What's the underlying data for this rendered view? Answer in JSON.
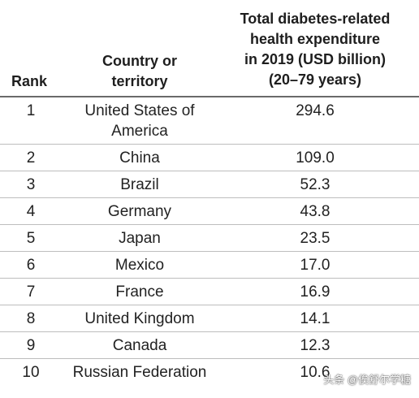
{
  "headers": {
    "rank": "Rank",
    "country": [
      "Country or",
      "territory"
    ],
    "expenditure": [
      "Total diabetes-related",
      "health expenditure",
      "in 2019 (USD billion)",
      "(20–79 years)"
    ]
  },
  "rows": [
    {
      "rank": "1",
      "country": "United States of America",
      "value": "294.6"
    },
    {
      "rank": "2",
      "country": "China",
      "value": "109.0"
    },
    {
      "rank": "3",
      "country": "Brazil",
      "value": "52.3"
    },
    {
      "rank": "4",
      "country": "Germany",
      "value": "43.8"
    },
    {
      "rank": "5",
      "country": "Japan",
      "value": "23.5"
    },
    {
      "rank": "6",
      "country": "Mexico",
      "value": "17.0"
    },
    {
      "rank": "7",
      "country": "France",
      "value": "16.9"
    },
    {
      "rank": "8",
      "country": "United Kingdom",
      "value": "14.1"
    },
    {
      "rank": "9",
      "country": "Canada",
      "value": "12.3"
    },
    {
      "rank": "10",
      "country": "Russian Federation",
      "value": "10.6"
    }
  ],
  "watermark": "头条 @俟舒尔学糖"
}
